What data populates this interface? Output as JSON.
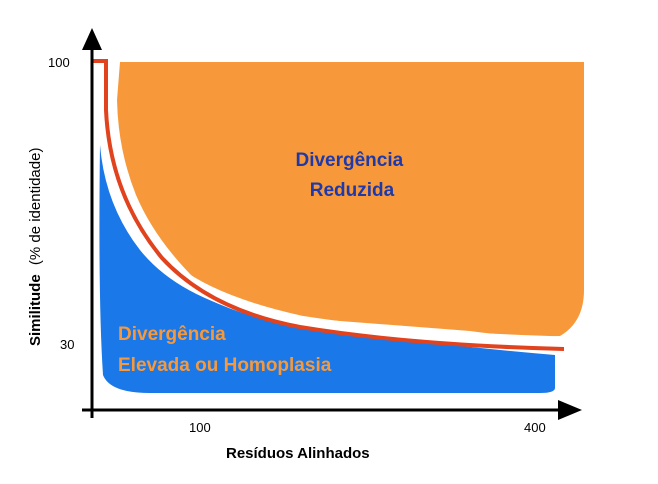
{
  "chart_data": {
    "type": "area",
    "title": "",
    "xlabel": "Resíduos Alinhados",
    "ylabel": "Similitude",
    "ylabel_sub": "(% de identidade)",
    "x_ticks": [
      "100",
      "400"
    ],
    "y_ticks": [
      "100",
      "30"
    ],
    "regions": [
      {
        "line1": "Divergência",
        "line2": "Reduzida",
        "fill": "#f7993a",
        "text_color": "#1f3aa8"
      },
      {
        "line1": "Divergência",
        "line2": "Elevada ou Homoplasia",
        "fill": "#1a78e8",
        "text_color": "#f7993a"
      }
    ],
    "threshold_line_color": "#e0431e",
    "axis_color": "#000000",
    "grid": false,
    "legend": "none"
  }
}
